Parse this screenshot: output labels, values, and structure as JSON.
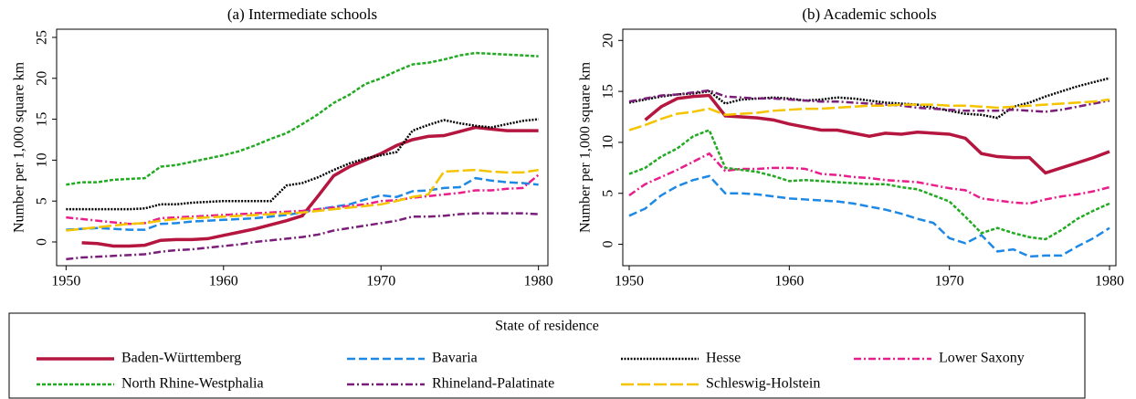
{
  "chart_data": [
    {
      "type": "line",
      "title": "(a) Intermediate schools",
      "ylabel": "Number per 1,000 square km",
      "x": [
        1950,
        1951,
        1952,
        1953,
        1954,
        1955,
        1956,
        1957,
        1958,
        1959,
        1960,
        1961,
        1962,
        1963,
        1964,
        1965,
        1966,
        1967,
        1968,
        1969,
        1970,
        1971,
        1972,
        1973,
        1974,
        1975,
        1976,
        1977,
        1978,
        1979,
        1980
      ],
      "xlim": [
        1949.4,
        1980.6
      ],
      "xticks": [
        1950,
        1960,
        1970,
        1980
      ],
      "ylim": [
        -2.9,
        26
      ],
      "yticks": [
        0,
        5,
        10,
        15,
        20,
        25
      ],
      "series": [
        {
          "name": "Baden-Württemberg",
          "color": "#b5163f",
          "dash": "solid",
          "values": [
            null,
            -0.1,
            -0.2,
            -0.5,
            -0.5,
            -0.4,
            0.2,
            0.3,
            0.3,
            0.4,
            0.8,
            1.2,
            1.6,
            2.1,
            2.6,
            3.2,
            5.6,
            8.1,
            9.2,
            10.0,
            10.8,
            11.8,
            12.5,
            12.9,
            13.0,
            13.5,
            14.0,
            13.8,
            13.6,
            13.6,
            13.6
          ]
        },
        {
          "name": "Bavaria",
          "color": "#1e88e5",
          "dash": "dashed",
          "values": [
            1.5,
            1.6,
            1.7,
            1.6,
            1.5,
            1.5,
            2.2,
            2.3,
            2.5,
            2.6,
            2.7,
            2.8,
            2.9,
            3.1,
            3.3,
            3.6,
            4.0,
            4.3,
            4.6,
            5.2,
            5.7,
            5.5,
            6.2,
            6.3,
            6.6,
            6.7,
            7.8,
            7.5,
            7.3,
            7.2,
            7.0
          ]
        },
        {
          "name": "Hesse",
          "color": "#000000",
          "dash": "dotted",
          "values": [
            4.0,
            4.0,
            4.0,
            4.0,
            4.0,
            4.1,
            4.6,
            4.6,
            4.8,
            4.9,
            5.0,
            5.0,
            5.0,
            5.0,
            6.9,
            7.2,
            7.9,
            8.8,
            9.6,
            10.2,
            10.6,
            11.0,
            13.6,
            14.3,
            14.9,
            14.5,
            14.2,
            14.0,
            14.4,
            14.8,
            15.0
          ]
        },
        {
          "name": "Lower Saxony",
          "color": "#e91e8c",
          "dash": "dashdot",
          "values": [
            3.0,
            2.8,
            2.6,
            2.4,
            2.2,
            2.3,
            2.9,
            3.0,
            3.1,
            3.2,
            3.3,
            3.4,
            3.5,
            3.6,
            3.7,
            3.8,
            4.0,
            4.2,
            4.4,
            4.6,
            5.0,
            5.1,
            5.4,
            5.6,
            5.8,
            6.0,
            6.3,
            6.3,
            6.5,
            6.6,
            8.2
          ]
        },
        {
          "name": "North Rhine-Westphalia",
          "color": "#22aa22",
          "dash": "shortdash",
          "values": [
            7.0,
            7.3,
            7.3,
            7.6,
            7.7,
            7.8,
            9.2,
            9.4,
            9.8,
            10.2,
            10.6,
            11.1,
            11.8,
            12.6,
            13.3,
            14.4,
            15.6,
            17.0,
            18.0,
            19.3,
            20.0,
            20.9,
            21.7,
            21.9,
            22.3,
            22.8,
            23.1,
            23.0,
            22.9,
            22.8,
            22.7
          ]
        },
        {
          "name": "Rhineland-Palatinate",
          "color": "#7b1e7a",
          "dash": "dashdot",
          "values": [
            -2.1,
            -1.9,
            -1.8,
            -1.7,
            -1.6,
            -1.5,
            -1.2,
            -1.0,
            -0.9,
            -0.7,
            -0.5,
            -0.3,
            0.0,
            0.2,
            0.4,
            0.6,
            0.9,
            1.4,
            1.7,
            2.0,
            2.3,
            2.6,
            3.1,
            3.1,
            3.2,
            3.4,
            3.5,
            3.5,
            3.5,
            3.5,
            3.4
          ]
        },
        {
          "name": "Schleswig-Holstein",
          "color": "#f5c400",
          "dash": "longdash",
          "values": [
            1.4,
            1.6,
            1.8,
            2.0,
            2.2,
            2.3,
            2.6,
            2.8,
            2.9,
            3.0,
            3.1,
            3.2,
            3.3,
            3.4,
            3.5,
            3.6,
            3.8,
            4.0,
            4.2,
            4.4,
            4.6,
            5.0,
            5.5,
            5.8,
            8.6,
            8.7,
            8.8,
            8.6,
            8.5,
            8.5,
            8.8
          ]
        }
      ]
    },
    {
      "type": "line",
      "title": "(b) Academic schools",
      "ylabel": "Number per 1,000 square km",
      "x": [
        1950,
        1951,
        1952,
        1953,
        1954,
        1955,
        1956,
        1957,
        1958,
        1959,
        1960,
        1961,
        1962,
        1963,
        1964,
        1965,
        1966,
        1967,
        1968,
        1969,
        1970,
        1971,
        1972,
        1973,
        1974,
        1975,
        1976,
        1977,
        1978,
        1979,
        1980
      ],
      "xlim": [
        1949.6,
        1980.4
      ],
      "xticks": [
        1950,
        1960,
        1970,
        1980
      ],
      "ylim": [
        -2.1,
        21.1
      ],
      "yticks": [
        0,
        5,
        10,
        15,
        20
      ],
      "series": [
        {
          "name": "Baden-Württemberg",
          "color": "#b5163f",
          "dash": "solid",
          "values": [
            null,
            12.2,
            13.5,
            14.3,
            14.5,
            14.6,
            12.6,
            12.5,
            12.4,
            12.2,
            11.8,
            11.5,
            11.2,
            11.2,
            10.9,
            10.6,
            10.9,
            10.8,
            11.0,
            10.9,
            10.8,
            10.4,
            8.9,
            8.6,
            8.5,
            8.5,
            7.0,
            7.5,
            8.0,
            8.5,
            9.1
          ]
        },
        {
          "name": "Bavaria",
          "color": "#1e88e5",
          "dash": "dashed",
          "values": [
            2.8,
            3.5,
            4.8,
            5.7,
            6.3,
            6.7,
            5.0,
            5.0,
            4.9,
            4.7,
            4.5,
            4.4,
            4.3,
            4.2,
            4.0,
            3.7,
            3.4,
            3.0,
            2.5,
            2.1,
            0.6,
            0.1,
            0.9,
            -0.7,
            -0.5,
            -1.2,
            -1.1,
            -1.1,
            -0.2,
            0.6,
            1.6
          ]
        },
        {
          "name": "Hesse",
          "color": "#000000",
          "dash": "dotted",
          "values": [
            13.9,
            14.2,
            14.5,
            14.7,
            14.8,
            15.0,
            13.8,
            14.2,
            14.3,
            14.4,
            14.3,
            14.1,
            14.2,
            14.4,
            14.3,
            14.1,
            13.9,
            13.8,
            13.7,
            13.4,
            13.1,
            12.8,
            12.7,
            12.4,
            13.5,
            13.9,
            14.5,
            15.0,
            15.5,
            15.9,
            16.3
          ]
        },
        {
          "name": "Lower Saxony",
          "color": "#e91e8c",
          "dash": "dashdot",
          "values": [
            4.8,
            5.9,
            6.6,
            7.3,
            8.1,
            8.9,
            7.2,
            7.4,
            7.4,
            7.5,
            7.5,
            7.4,
            6.9,
            6.8,
            6.6,
            6.5,
            6.3,
            6.2,
            6.1,
            5.8,
            5.5,
            5.3,
            4.5,
            4.3,
            4.1,
            4.0,
            4.4,
            4.7,
            4.9,
            5.2,
            5.6
          ]
        },
        {
          "name": "North Rhine-Westphalia",
          "color": "#22aa22",
          "dash": "shortdash",
          "values": [
            6.9,
            7.5,
            8.6,
            9.4,
            10.6,
            11.2,
            7.5,
            7.3,
            7.1,
            6.7,
            6.2,
            6.3,
            6.2,
            6.1,
            6.0,
            5.9,
            5.9,
            5.6,
            5.4,
            4.8,
            4.2,
            2.7,
            1.1,
            1.6,
            1.1,
            0.7,
            0.5,
            1.4,
            2.5,
            3.3,
            4.0
          ]
        },
        {
          "name": "Rhineland-Palatinate",
          "color": "#7b1e7a",
          "dash": "dashdot",
          "values": [
            14.0,
            14.3,
            14.6,
            14.7,
            14.9,
            15.1,
            14.5,
            14.4,
            14.3,
            14.3,
            14.2,
            14.1,
            14.0,
            14.0,
            13.9,
            13.8,
            13.7,
            13.6,
            13.4,
            13.3,
            13.2,
            13.1,
            13.1,
            13.1,
            13.2,
            13.1,
            13.0,
            13.2,
            13.5,
            13.8,
            14.1
          ]
        },
        {
          "name": "Schleswig-Holstein",
          "color": "#f5c400",
          "dash": "longdash",
          "values": [
            11.2,
            11.7,
            12.3,
            12.8,
            13.0,
            13.3,
            12.7,
            12.8,
            12.9,
            13.1,
            13.2,
            13.3,
            13.3,
            13.4,
            13.5,
            13.6,
            13.6,
            13.7,
            13.7,
            13.7,
            13.6,
            13.6,
            13.5,
            13.4,
            13.5,
            13.6,
            13.7,
            13.8,
            13.9,
            14.0,
            14.2
          ]
        }
      ]
    }
  ],
  "legend": {
    "title": "State of residence"
  }
}
